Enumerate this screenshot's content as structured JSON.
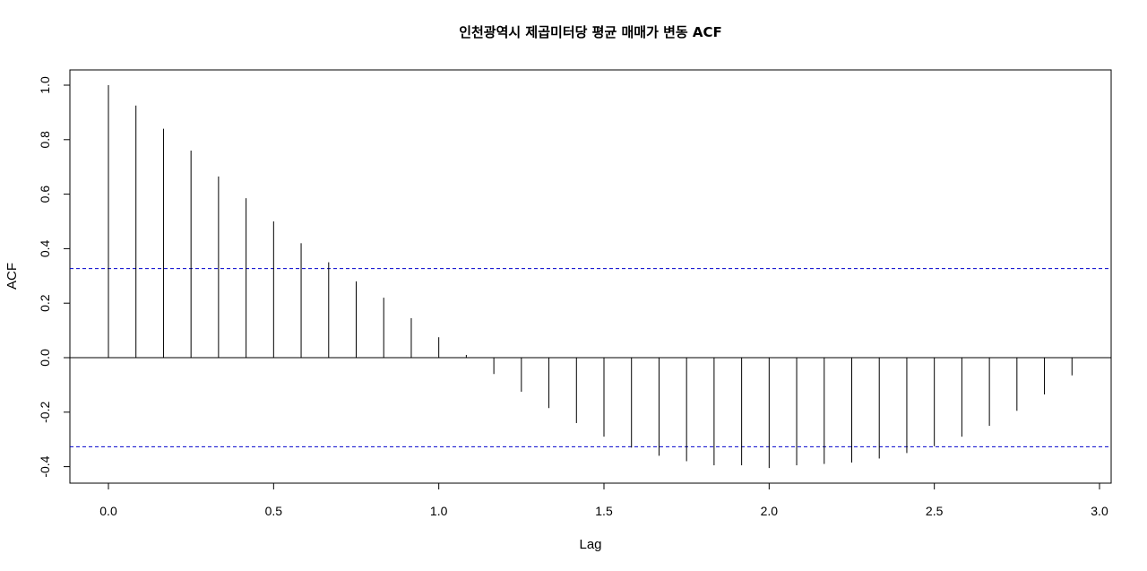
{
  "chart_data": {
    "type": "bar",
    "title": "인천광역시 제곱미터당 평균 매매가 변동 ACF",
    "xlabel": "Lag",
    "ylabel": "ACF",
    "xlim": [
      0.0,
      3.0
    ],
    "ylim": [
      -0.4,
      1.0
    ],
    "x_ticks": [
      "0.0",
      "0.5",
      "1.0",
      "1.5",
      "2.0",
      "2.5",
      "3.0"
    ],
    "y_ticks": [
      "-0.4",
      "-0.2",
      "0.0",
      "0.2",
      "0.4",
      "0.6",
      "0.8",
      "1.0"
    ],
    "confidence_bound": 0.327,
    "confidence_color": "#0000cc",
    "grid": false,
    "lags": [
      0.0,
      0.0833,
      0.1667,
      0.25,
      0.3333,
      0.4167,
      0.5,
      0.5833,
      0.6667,
      0.75,
      0.8333,
      0.9167,
      1.0,
      1.0833,
      1.1667,
      1.25,
      1.3333,
      1.4167,
      1.5,
      1.5833,
      1.6667,
      1.75,
      1.8333,
      1.9167,
      2.0,
      2.0833,
      2.1667,
      2.25,
      2.3333,
      2.4167,
      2.5,
      2.5833,
      2.6667,
      2.75,
      2.8333,
      2.9167
    ],
    "values": [
      1.0,
      0.925,
      0.84,
      0.76,
      0.665,
      0.585,
      0.5,
      0.42,
      0.35,
      0.28,
      0.22,
      0.145,
      0.075,
      0.01,
      -0.06,
      -0.125,
      -0.185,
      -0.24,
      -0.29,
      -0.33,
      -0.36,
      -0.38,
      -0.395,
      -0.395,
      -0.405,
      -0.395,
      -0.39,
      -0.385,
      -0.37,
      -0.35,
      -0.325,
      -0.29,
      -0.25,
      -0.195,
      -0.135,
      -0.065
    ]
  }
}
